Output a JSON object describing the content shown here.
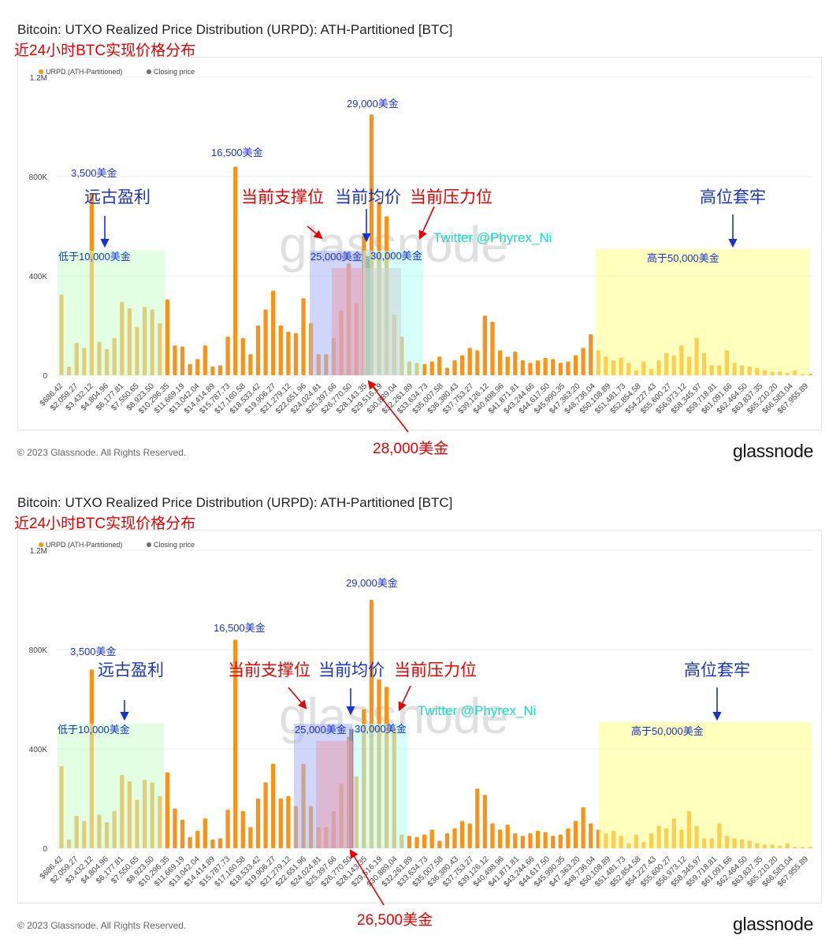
{
  "colors": {
    "bar": "#f7931a",
    "closing": "#6e6e6e",
    "grid": "#ececec",
    "annotation_red": "#e60000",
    "annotation_blue": "#1a33cc",
    "twitter": "#19d9c9",
    "green_zone": "#ccffcc",
    "blue_zone": "#aab4f5",
    "red_zone": "#e6a0b0",
    "cyan_zone": "#b3fff3",
    "yellow_zone": "#ffff88"
  },
  "panels": [
    {
      "title": "Bitcoin: UTXO Realized Price Distribution (URPD): ATH-Partitioned [BTC]",
      "subtitle": "近24小时BTC实现价格分布",
      "legend": {
        "series1": "URPD (ATH-Partitioned)",
        "series2": "Closing price"
      },
      "annotations": {
        "ancient_profit": "远古盈利",
        "support": "当前支撑位",
        "average": "当前均价",
        "resistance": "当前压力位",
        "trapped": "高位套牢",
        "below_10k": "低于10,000美金",
        "zone_25k": "25,000美金",
        "zone_30k": "30,000美金",
        "above_50k": "高于50,000美金",
        "peak_3500": "3,500美金",
        "peak_16500": "16,500美金",
        "peak_29000": "29,000美金",
        "twitter": "Twitter @Phyrex_Ni",
        "price_marker": "28,000美金"
      },
      "copyright": "© 2023 Glassnode. All Rights Reserved.",
      "logo": "glassnode",
      "watermark": "glassnode"
    },
    {
      "title": "Bitcoin: UTXO Realized Price Distribution (URPD): ATH-Partitioned [BTC]",
      "subtitle": "近24小时BTC实现价格分布",
      "legend": {
        "series1": "URPD (ATH-Partitioned)",
        "series2": "Closing price"
      },
      "annotations": {
        "ancient_profit": "远古盈利",
        "support": "当前支撑位",
        "average": "当前均价",
        "resistance": "当前压力位",
        "trapped": "高位套牢",
        "below_10k": "低于10,000美金",
        "zone_25k": "25,000美金",
        "zone_30k": "30,000美金",
        "above_50k": "高于50,000美金",
        "peak_3500": "3,500美金",
        "peak_16500": "16,500美金",
        "peak_29000": "29,000美金",
        "twitter": "Twitter @Phyrex_Ni",
        "price_marker": "26,500美金"
      },
      "copyright": "© 2023 Glassnode. All Rights Reserved.",
      "logo": "glassnode",
      "watermark": "glassnode"
    }
  ],
  "chart_data": [
    {
      "type": "bar",
      "title": "Bitcoin: UTXO Realized Price Distribution (URPD): ATH-Partitioned [BTC]",
      "ylim": [
        0,
        1200000
      ],
      "yticks": [
        {
          "value": 0,
          "label": "0"
        },
        {
          "value": 400000,
          "label": "400K"
        },
        {
          "value": 800000,
          "label": "800K"
        },
        {
          "value": 1200000,
          "label": "1.2M"
        }
      ],
      "grid": true,
      "legend_position": "top-left",
      "closing_price": 27800,
      "tick_labels": [
        "$686.42",
        "$2,059.27",
        "$3,432.12",
        "$4,804.96",
        "$6,177.81",
        "$7,550.65",
        "$8,923.50",
        "$10,296.35",
        "$11,669.19",
        "$13,042.04",
        "$14,414.89",
        "$15,787.73",
        "$17,160.58",
        "$18,533.42",
        "$19,906.27",
        "$21,279.12",
        "$22,651.96",
        "$24,024.81",
        "$25,397.66",
        "$26,770.50",
        "$28,143.35",
        "$29,516.19",
        "$30,889.04",
        "$32,261.89",
        "$33,634.73",
        "$35,007.58",
        "$36,380.43",
        "$37,753.27",
        "$39,126.12",
        "$40,498.96",
        "$41,871.81",
        "$43,244.66",
        "$44,617.50",
        "$45,990.35",
        "$47,363.20",
        "$48,736.04",
        "$50,108.89",
        "$51,481.73",
        "$52,854.58",
        "$54,227.43",
        "$55,600.27",
        "$56,973.12",
        "$58,345.97",
        "$59,718.81",
        "$61,091.66",
        "$62,464.50",
        "$63,837.35",
        "$65,210.20",
        "$66,583.04",
        "$67,955.89"
      ],
      "series": [
        {
          "name": "URPD (ATH-Partitioned)",
          "x": [
            0,
            686,
            1373,
            2059,
            2746,
            3432,
            4119,
            4805,
            5492,
            6178,
            6865,
            7551,
            8237,
            8924,
            9610,
            10296,
            10983,
            11669,
            12356,
            13042,
            13729,
            14415,
            15102,
            15788,
            16474,
            17161,
            17847,
            18533,
            19220,
            19906,
            20593,
            21279,
            21966,
            22652,
            23339,
            24025,
            24711,
            25398,
            26084,
            26771,
            27457,
            28143,
            28830,
            29516,
            30203,
            30889,
            31576,
            32262,
            32948,
            33635,
            34321,
            35008,
            35694,
            36380,
            37067,
            37753,
            38440,
            39126,
            39813,
            40499,
            41185,
            41872,
            42558,
            43245,
            43931,
            44617,
            45304,
            45990,
            46677,
            47363,
            48050,
            48736,
            49422,
            50109,
            50795,
            51482,
            52168,
            52855,
            53541,
            54227,
            54914,
            55600,
            56287,
            56973,
            57659,
            58346,
            59032,
            59719,
            60405,
            61092,
            61778,
            62465,
            63151,
            63837,
            64524,
            65210,
            65896,
            66583,
            67269,
            67956
          ],
          "values": [
            325000,
            35000,
            130000,
            110000,
            730000,
            135000,
            105000,
            150000,
            295000,
            270000,
            195000,
            275000,
            265000,
            210000,
            305000,
            120000,
            115000,
            45000,
            65000,
            120000,
            35000,
            40000,
            155000,
            840000,
            150000,
            85000,
            200000,
            265000,
            340000,
            200000,
            175000,
            170000,
            310000,
            210000,
            85000,
            85000,
            150000,
            260000,
            450000,
            290000,
            560000,
            1050000,
            700000,
            640000,
            245000,
            155000,
            55000,
            50000,
            45000,
            55000,
            75000,
            30000,
            60000,
            80000,
            110000,
            100000,
            240000,
            215000,
            100000,
            75000,
            95000,
            60000,
            50000,
            60000,
            70000,
            65000,
            50000,
            55000,
            80000,
            110000,
            165000,
            100000,
            75000,
            60000,
            70000,
            50000,
            20000,
            55000,
            25000,
            60000,
            90000,
            80000,
            120000,
            75000,
            150000,
            90000,
            40000,
            40000,
            100000,
            50000,
            40000,
            35000,
            30000,
            20000,
            15000,
            15000,
            10000,
            20000,
            5000,
            5000
          ]
        }
      ]
    },
    {
      "type": "bar",
      "title": "Bitcoin: UTXO Realized Price Distribution (URPD): ATH-Partitioned [BTC]",
      "ylim": [
        0,
        1200000
      ],
      "yticks": [
        {
          "value": 0,
          "label": "0"
        },
        {
          "value": 400000,
          "label": "400K"
        },
        {
          "value": 800000,
          "label": "800K"
        },
        {
          "value": 1200000,
          "label": "1.2M"
        }
      ],
      "grid": true,
      "legend_position": "top-left",
      "closing_price": 26300,
      "tick_labels": [
        "$686.42",
        "$2,059.27",
        "$3,432.12",
        "$4,804.96",
        "$6,177.81",
        "$7,550.65",
        "$8,923.50",
        "$10,296.35",
        "$11,669.19",
        "$13,042.04",
        "$14,414.89",
        "$15,787.73",
        "$17,160.58",
        "$18,533.42",
        "$19,906.27",
        "$21,279.12",
        "$22,651.96",
        "$24,024.81",
        "$25,397.66",
        "$26,770.50",
        "$28,143.35",
        "$29,516.19",
        "$30,889.04",
        "$32,261.89",
        "$33,634.73",
        "$35,007.58",
        "$36,380.43",
        "$37,753.27",
        "$39,126.12",
        "$40,498.96",
        "$41,871.81",
        "$43,244.66",
        "$44,617.50",
        "$45,990.35",
        "$47,363.20",
        "$48,736.04",
        "$50,108.89",
        "$51,481.73",
        "$52,854.58",
        "$54,227.43",
        "$55,600.27",
        "$56,973.12",
        "$58,345.97",
        "$59,718.81",
        "$61,091.66",
        "$62,464.50",
        "$63,837.35",
        "$65,210.20",
        "$66,583.04",
        "$67,955.89"
      ],
      "series": [
        {
          "name": "URPD (ATH-Partitioned)",
          "x": [
            0,
            686,
            1373,
            2059,
            2746,
            3432,
            4119,
            4805,
            5492,
            6178,
            6865,
            7551,
            8237,
            8924,
            9610,
            10296,
            10983,
            11669,
            12356,
            13042,
            13729,
            14415,
            15102,
            15788,
            16474,
            17161,
            17847,
            18533,
            19220,
            19906,
            20593,
            21279,
            21966,
            22652,
            23339,
            24025,
            24711,
            25398,
            26084,
            26771,
            27457,
            28143,
            28830,
            29516,
            30203,
            30889,
            31576,
            32262,
            32948,
            33635,
            34321,
            35008,
            35694,
            36380,
            37067,
            37753,
            38440,
            39126,
            39813,
            40499,
            41185,
            41872,
            42558,
            43245,
            43931,
            44617,
            45304,
            45990,
            46677,
            47363,
            48050,
            48736,
            49422,
            50109,
            50795,
            51482,
            52168,
            52855,
            53541,
            54227,
            54914,
            55600,
            56287,
            56973,
            57659,
            58346,
            59032,
            59719,
            60405,
            61092,
            61778,
            62465,
            63151,
            63837,
            64524,
            65210,
            65896,
            66583,
            67269,
            67956
          ],
          "values": [
            330000,
            35000,
            130000,
            110000,
            720000,
            135000,
            105000,
            150000,
            295000,
            270000,
            195000,
            275000,
            265000,
            210000,
            305000,
            160000,
            115000,
            45000,
            70000,
            120000,
            35000,
            40000,
            155000,
            840000,
            150000,
            85000,
            200000,
            265000,
            340000,
            200000,
            210000,
            170000,
            340000,
            170000,
            85000,
            85000,
            150000,
            260000,
            450000,
            290000,
            560000,
            1000000,
            680000,
            650000,
            480000,
            55000,
            50000,
            45000,
            55000,
            75000,
            30000,
            60000,
            80000,
            110000,
            100000,
            240000,
            215000,
            100000,
            75000,
            95000,
            60000,
            50000,
            60000,
            70000,
            65000,
            50000,
            55000,
            80000,
            110000,
            165000,
            100000,
            75000,
            60000,
            70000,
            50000,
            20000,
            55000,
            25000,
            60000,
            90000,
            80000,
            120000,
            75000,
            150000,
            90000,
            40000,
            40000,
            100000,
            50000,
            40000,
            35000,
            30000,
            20000,
            15000,
            15000,
            10000,
            20000,
            5000,
            5000,
            5000
          ]
        }
      ]
    }
  ]
}
